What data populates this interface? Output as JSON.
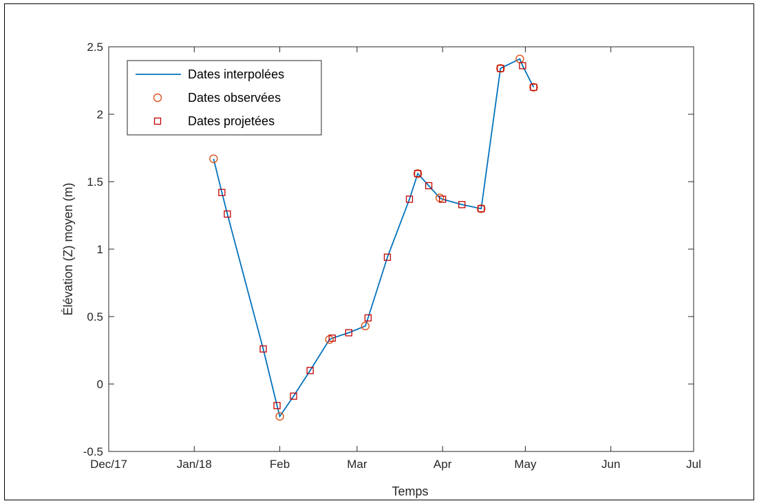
{
  "chart_data": {
    "type": "line",
    "title": "",
    "xlabel": "Temps",
    "ylabel": "Élévation (Z) moyen (m)",
    "x_ticks": [
      {
        "date": "2017-12-01",
        "label": "Dec/17"
      },
      {
        "date": "2018-01-01",
        "label": "Jan/18"
      },
      {
        "date": "2018-02-01",
        "label": "Feb"
      },
      {
        "date": "2018-03-01",
        "label": "Mar"
      },
      {
        "date": "2018-04-01",
        "label": "Apr"
      },
      {
        "date": "2018-05-01",
        "label": "May"
      },
      {
        "date": "2018-06-01",
        "label": "Jun"
      },
      {
        "date": "2018-07-01",
        "label": "Jul"
      }
    ],
    "xlim": [
      "2017-12-01",
      "2018-07-01"
    ],
    "ylim": [
      -0.5,
      2.5
    ],
    "y_ticks": [
      -0.5,
      0,
      0.5,
      1,
      1.5,
      2,
      2.5
    ],
    "grid": false,
    "legend_position": "top-left",
    "series": [
      {
        "name": "Dates interpolées",
        "style": "line",
        "color": "#0072bd",
        "points": [
          [
            "2018-01-08",
            1.67
          ],
          [
            "2018-01-11",
            1.42
          ],
          [
            "2018-01-13",
            1.26
          ],
          [
            "2018-01-26",
            0.26
          ],
          [
            "2018-01-31",
            -0.16
          ],
          [
            "2018-02-01",
            -0.24
          ],
          [
            "2018-02-06",
            -0.09
          ],
          [
            "2018-02-12",
            0.1
          ],
          [
            "2018-02-19",
            0.33
          ],
          [
            "2018-02-20",
            0.34
          ],
          [
            "2018-02-26",
            0.38
          ],
          [
            "2018-03-04",
            0.43
          ],
          [
            "2018-03-05",
            0.49
          ],
          [
            "2018-03-12",
            0.94
          ],
          [
            "2018-03-20",
            1.37
          ],
          [
            "2018-03-23",
            1.56
          ],
          [
            "2018-03-27",
            1.47
          ],
          [
            "2018-03-31",
            1.38
          ],
          [
            "2018-04-01",
            1.37
          ],
          [
            "2018-04-08",
            1.33
          ],
          [
            "2018-04-15",
            1.3
          ],
          [
            "2018-04-22",
            2.34
          ],
          [
            "2018-04-29",
            2.41
          ],
          [
            "2018-04-30",
            2.36
          ],
          [
            "2018-05-04",
            2.2
          ]
        ]
      },
      {
        "name": "Dates observées",
        "style": "marker-circle",
        "color": "#d95319",
        "points": [
          [
            "2018-01-08",
            1.67
          ],
          [
            "2018-02-01",
            -0.24
          ],
          [
            "2018-02-19",
            0.33
          ],
          [
            "2018-03-04",
            0.43
          ],
          [
            "2018-03-23",
            1.56
          ],
          [
            "2018-03-31",
            1.38
          ],
          [
            "2018-04-15",
            1.3
          ],
          [
            "2018-04-22",
            2.34
          ],
          [
            "2018-04-29",
            2.41
          ],
          [
            "2018-05-04",
            2.2
          ]
        ]
      },
      {
        "name": "Dates projetées",
        "style": "marker-square",
        "color": "#c00000",
        "points": [
          [
            "2018-01-11",
            1.42
          ],
          [
            "2018-01-13",
            1.26
          ],
          [
            "2018-01-26",
            0.26
          ],
          [
            "2018-01-31",
            -0.16
          ],
          [
            "2018-02-06",
            -0.09
          ],
          [
            "2018-02-12",
            0.1
          ],
          [
            "2018-02-20",
            0.34
          ],
          [
            "2018-02-26",
            0.38
          ],
          [
            "2018-03-05",
            0.49
          ],
          [
            "2018-03-12",
            0.94
          ],
          [
            "2018-03-20",
            1.37
          ],
          [
            "2018-03-23",
            1.56
          ],
          [
            "2018-03-27",
            1.47
          ],
          [
            "2018-04-01",
            1.37
          ],
          [
            "2018-04-08",
            1.33
          ],
          [
            "2018-04-15",
            1.3
          ],
          [
            "2018-04-22",
            2.34
          ],
          [
            "2018-04-30",
            2.36
          ],
          [
            "2018-05-04",
            2.2
          ]
        ]
      }
    ]
  }
}
